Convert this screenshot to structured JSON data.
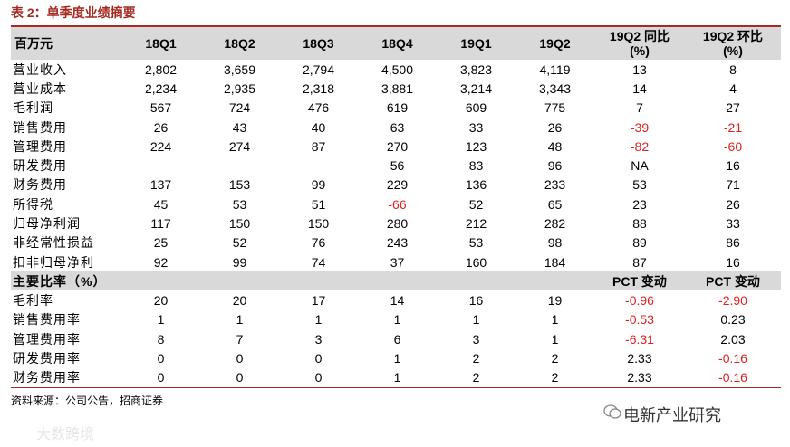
{
  "title": "表 2：单季度业绩摘要",
  "table": {
    "header": [
      [
        "百万元"
      ],
      [
        "18Q1"
      ],
      [
        "18Q2"
      ],
      [
        "18Q3"
      ],
      [
        "18Q4"
      ],
      [
        "19Q1"
      ],
      [
        "19Q2"
      ],
      [
        "19Q2 同比",
        "(%)"
      ],
      [
        "19Q2 环比",
        "(%)"
      ]
    ],
    "rows": [
      {
        "label": "营业收入",
        "cells": [
          "2,802",
          "3,659",
          "2,794",
          "4,500",
          "3,823",
          "4,119",
          "13",
          "8"
        ]
      },
      {
        "label": "营业成本",
        "cells": [
          "2,234",
          "2,935",
          "2,318",
          "3,881",
          "3,214",
          "3,343",
          "14",
          "4"
        ]
      },
      {
        "label": "毛利润",
        "cells": [
          "567",
          "724",
          "476",
          "619",
          "609",
          "775",
          "7",
          "27"
        ]
      },
      {
        "label": "销售费用",
        "cells": [
          "26",
          "43",
          "40",
          "63",
          "33",
          "26",
          "-39",
          "-21"
        ]
      },
      {
        "label": "管理费用",
        "cells": [
          "224",
          "274",
          "87",
          "270",
          "123",
          "48",
          "-82",
          "-60"
        ]
      },
      {
        "label": "研发费用",
        "cells": [
          null,
          null,
          null,
          "56",
          "83",
          "96",
          "NA",
          "16"
        ]
      },
      {
        "label": "财务费用",
        "cells": [
          "137",
          "153",
          "99",
          "229",
          "136",
          "233",
          "53",
          "71"
        ]
      },
      {
        "label": "所得税",
        "cells": [
          "45",
          "53",
          "51",
          "-66",
          "52",
          "65",
          "23",
          "26"
        ]
      },
      {
        "label": "归母净利润",
        "cells": [
          "117",
          "150",
          "150",
          "280",
          "212",
          "282",
          "88",
          "33"
        ]
      },
      {
        "label": "非经常性损益",
        "cells": [
          "25",
          "52",
          "76",
          "243",
          "53",
          "98",
          "89",
          "86"
        ]
      },
      {
        "label": "扣非归母净利",
        "cells": [
          "92",
          "99",
          "74",
          "37",
          "160",
          "184",
          "87",
          "16"
        ]
      },
      {
        "label": "主要比率（%）",
        "section": true,
        "cells": [
          null,
          null,
          null,
          null,
          null,
          null,
          "PCT 变动",
          "PCT 变动"
        ]
      },
      {
        "label": "毛利率",
        "cells": [
          "20",
          "20",
          "17",
          "14",
          "16",
          "19",
          "-0.96",
          "-2.90"
        ]
      },
      {
        "label": "销售费用率",
        "cells": [
          "1",
          "1",
          "1",
          "1",
          "1",
          "1",
          "-0.53",
          "0.23"
        ]
      },
      {
        "label": "管理费用率",
        "cells": [
          "8",
          "7",
          "3",
          "6",
          "3",
          "1",
          "-6.31",
          "2.03"
        ]
      },
      {
        "label": "研发费用率",
        "cells": [
          "0",
          "0",
          "0",
          "1",
          "2",
          "2",
          "2.33",
          "-0.16"
        ]
      },
      {
        "label": "财务费用率",
        "cells": [
          "0",
          "0",
          "0",
          "1",
          "2",
          "2",
          "2.33",
          "-0.16"
        ]
      }
    ]
  },
  "source": "资料来源：公司公告，招商证券",
  "watermark": "电新产业研究",
  "corner_mark": "大数跨境"
}
